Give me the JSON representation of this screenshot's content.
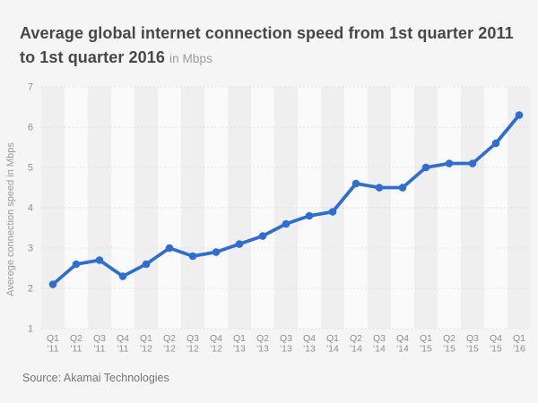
{
  "chart_data": {
    "type": "line",
    "title": "Average global internet connection speed from 1st quarter 2011 to 1st quarter 2016",
    "subtitle": "in Mbps",
    "xlabel": "",
    "ylabel": "Averege connection speed in Mbps",
    "categories": [
      "Q1 '11",
      "Q2 '11",
      "Q3 '11",
      "Q4 '11",
      "Q1 '12",
      "Q2 '12",
      "Q3 '12",
      "Q4 '12",
      "Q1 '13",
      "Q2 '13",
      "Q3 '13",
      "Q4 '13",
      "Q1 '14",
      "Q2 '14",
      "Q3 '14",
      "Q4 '14",
      "Q1 '15",
      "Q2 '15",
      "Q3 '15",
      "Q4 '15",
      "Q1 '16"
    ],
    "values": [
      2.1,
      2.6,
      2.7,
      2.3,
      2.6,
      3.0,
      2.8,
      2.9,
      3.1,
      3.3,
      3.6,
      3.8,
      3.9,
      4.6,
      4.5,
      4.5,
      5.0,
      5.1,
      5.1,
      5.6,
      6.3
    ],
    "ylim": [
      1,
      7
    ],
    "yticks": [
      1,
      2,
      3,
      4,
      5,
      6,
      7
    ],
    "grid": "horizontal-dotted",
    "legend_position": "none",
    "plot_background": "alternating-vertical-stripes",
    "colors": {
      "line": "#2d6ed4",
      "point": "#2d6ed4",
      "stripe_dark": "#efefef",
      "stripe_light": "#fafafa",
      "gridline": "#d9d9d9",
      "title_text": "#474747",
      "subtitle_text": "#9b9b9b",
      "axis_text": "#8e8e8e",
      "source_text": "#757575",
      "page_background": "#f5f5f5"
    }
  },
  "footer": {
    "source": "Source: Akamai Technologies"
  }
}
